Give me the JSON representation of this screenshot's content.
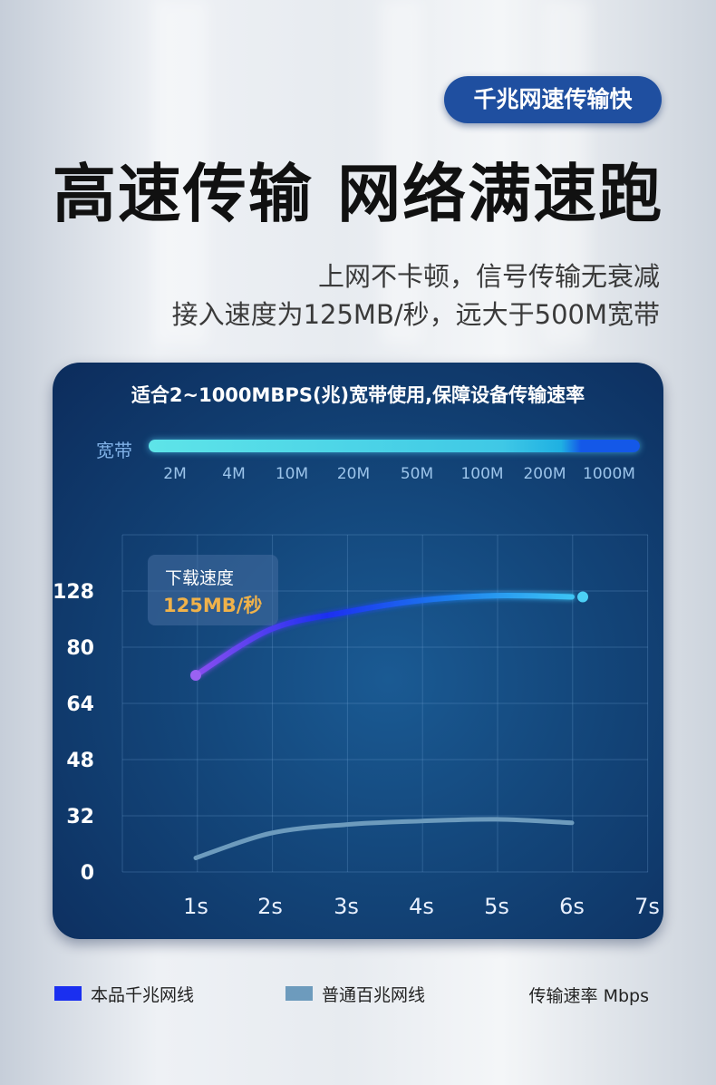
{
  "badge": "千兆网速传输快",
  "headline": "高速传输 网络满速跑",
  "sublines": [
    "上网不卡顿，信号传输无衰减",
    "接入速度为125MB/秒，远大于500M宽带"
  ],
  "panel": {
    "title": "适合2~1000MBPS(兆)宽带使用,保障设备传输速率",
    "bandwidth_label": "宽带",
    "bandwidth_ticks": [
      "2M",
      "4M",
      "10M",
      "20M",
      "50M",
      "100M",
      "200M",
      "1000M"
    ]
  },
  "tooltip": {
    "label": "下载速度",
    "value": "125MB/秒"
  },
  "legend": {
    "series1": "本品千兆网线",
    "series2": "普通百兆网线",
    "unit": "传输速率 Mbps"
  },
  "colors": {
    "series1": "#1a2ff0",
    "series2": "#6d9bbd",
    "highlight": "#f0b24a"
  },
  "chart_data": {
    "type": "line",
    "x": [
      "1s",
      "2s",
      "3s",
      "4s",
      "5s",
      "6s",
      "7s"
    ],
    "y_ticks": [
      "0",
      "32",
      "48",
      "64",
      "80",
      "128"
    ],
    "series": [
      {
        "name": "本品千兆网线",
        "x": [
          "1s",
          "2s",
          "3s",
          "4s",
          "5s",
          "6s"
        ],
        "values": [
          72,
          95,
          110,
          120,
          124,
          123
        ]
      },
      {
        "name": "普通百兆网线",
        "x": [
          "1s",
          "2s",
          "3s",
          "4s",
          "5s",
          "6s"
        ],
        "values": [
          8,
          22,
          27,
          29,
          30,
          28
        ]
      }
    ]
  }
}
